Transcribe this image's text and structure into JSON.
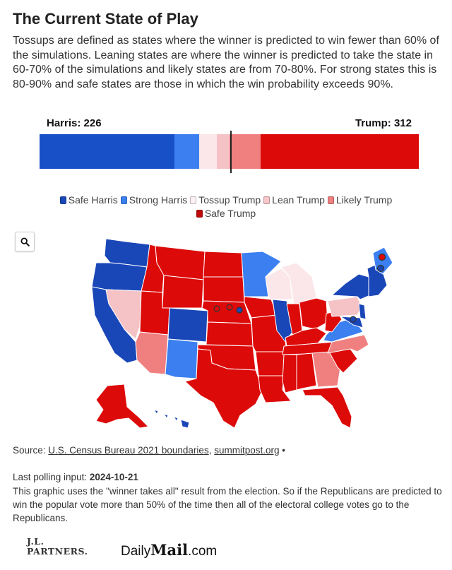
{
  "header": {
    "title": "The Current State of Play",
    "description": "Tossups are defined as states where the winner is predicted to win fewer than 60% of the simulations. Leaning states are where the winner is predicted to take the state in 60-70% of the simulations and likely states are from 70-80%. For strong states this is 80-90% and safe states are those in which the win probability exceeds 90%."
  },
  "totals": {
    "harris_label": "Harris: 226",
    "trump_label": "Trump: 312"
  },
  "bar_segments": [
    {
      "category": "Safe Harris",
      "votes": 191,
      "color": "#1750c7"
    },
    {
      "category": "Strong Harris",
      "votes": 35,
      "color": "#3b7ff0"
    },
    {
      "category": "Tossup Trump",
      "votes": 25,
      "color": "#fbe7e9"
    },
    {
      "category": "Lean Trump",
      "votes": 19,
      "color": "#f5c2c5"
    },
    {
      "category": "Likely Trump",
      "votes": 44,
      "color": "#f08080"
    },
    {
      "category": "Safe Trump",
      "votes": 224,
      "color": "#dd0a0a"
    }
  ],
  "legend": [
    {
      "label": "Safe Harris",
      "color": "#1a47b8"
    },
    {
      "label": "Strong Harris",
      "color": "#3b7ff0"
    },
    {
      "label": "Tossup Trump",
      "color": "#fdf1f2"
    },
    {
      "label": "Lean Trump",
      "color": "#f7c6c9"
    },
    {
      "label": "Likely Trump",
      "color": "#f08080"
    },
    {
      "label": "Safe Trump",
      "color": "#c00a0a"
    }
  ],
  "map": {
    "zoom_icon": "search-icon",
    "colors": {
      "safe_harris": "#1a47b8",
      "strong_harris": "#3b7ff0",
      "tossup_trump": "#fbe7e9",
      "lean_trump": "#f5c2c5",
      "likely_trump": "#f08080",
      "safe_trump": "#dd0a0a"
    }
  },
  "footer": {
    "source_prefix": "Source:",
    "source_link_1": "U.S. Census Bureau 2021 boundaries",
    "source_sep": ",",
    "source_link_2": "summitpost.org",
    "source_suffix": "•",
    "polling_label": "Last polling input:",
    "polling_date": "2024-10-21",
    "note": "This graphic uses the \"winner takes all\" result from the election. So if the Republicans are predicted to win the popular vote more than 50% of the time then all of the electoral college votes go to the Republicans.",
    "logo_jl_line1": "J.L.",
    "logo_jl_line2": "PARTNERS.",
    "logo_dm_1": "Daily",
    "logo_dm_2": "Mail",
    "logo_dm_3": ".com"
  }
}
